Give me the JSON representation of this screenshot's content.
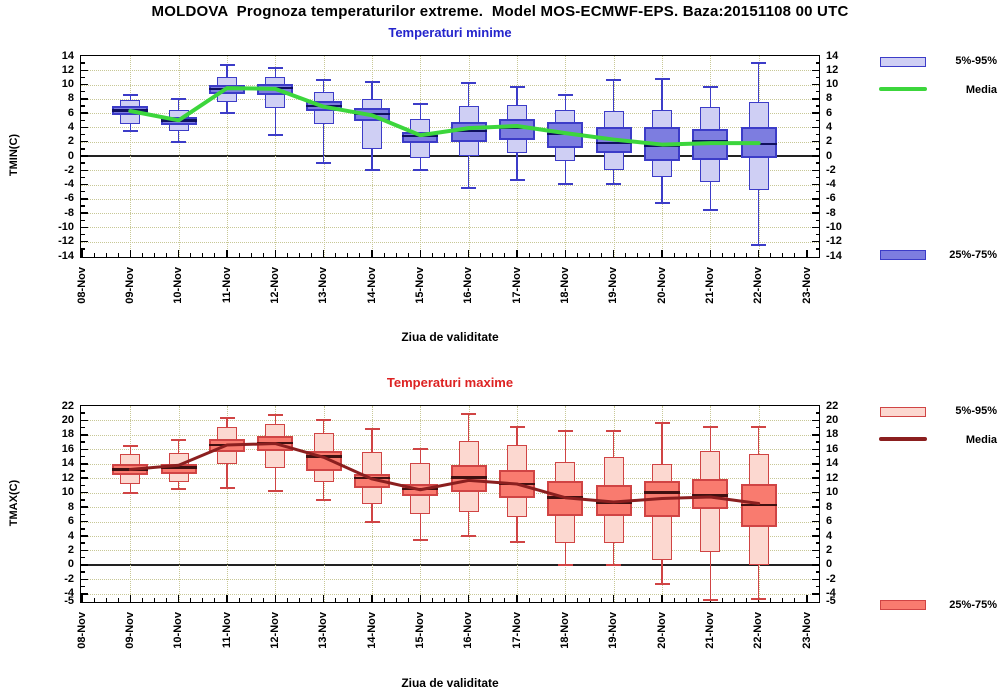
{
  "title": "MOLDOVA  Prognoza temperaturilor extreme.  Model MOS-ECMWF-EPS. Baza:20151108 00 UTC",
  "xlabel": "Ziua de validitate",
  "x_dates": [
    "08-Nov",
    "09-Nov",
    "10-Nov",
    "11-Nov",
    "12-Nov",
    "13-Nov",
    "14-Nov",
    "15-Nov",
    "16-Nov",
    "17-Nov",
    "18-Nov",
    "19-Nov",
    "20-Nov",
    "21-Nov",
    "22-Nov",
    "23-Nov"
  ],
  "colors": {
    "frame": "#000000",
    "grid": "#c8c896",
    "zero_line": "#222222",
    "title_text": "#000000"
  },
  "chart_data": [
    {
      "type": "boxplot",
      "title": "Temperaturi minime",
      "title_color": "#2424cc",
      "ylabel": "TMIN(C)",
      "xlabel": "Ziua de validitate",
      "ylim": [
        -14,
        14
      ],
      "yticks": [
        14,
        12,
        10,
        8,
        6,
        4,
        2,
        0,
        -2,
        -4,
        -6,
        -8,
        -10,
        -12,
        -14
      ],
      "grid": "dotted",
      "legend_position": "right",
      "legend": {
        "band_outer": "5%-95%",
        "media": "Media",
        "band_inner": "25%-75%"
      },
      "colors": {
        "border": "#3434bе",
        "whisker": "#3c3cc8",
        "box_5_95": "#cfcff4",
        "box_25_75": "#7d7de0",
        "median": "#101060",
        "media": "#3cd63c"
      },
      "boxes": [
        {
          "x": "09-Nov",
          "low": 3.5,
          "p5": 4.5,
          "p25": 5.8,
          "med": 6.4,
          "p75": 7.0,
          "p95": 7.8,
          "high": 8.5,
          "media": 6.3
        },
        {
          "x": "10-Nov",
          "low": 2.0,
          "p5": 3.5,
          "p25": 4.3,
          "med": 5.0,
          "p75": 5.5,
          "p95": 6.5,
          "high": 8.0,
          "media": 5.0
        },
        {
          "x": "11-Nov",
          "low": 6.0,
          "p5": 7.5,
          "p25": 8.7,
          "med": 9.4,
          "p75": 10.0,
          "p95": 11.0,
          "high": 12.8,
          "media": 9.5
        },
        {
          "x": "12-Nov",
          "low": 3.0,
          "p5": 6.7,
          "p25": 8.6,
          "med": 9.5,
          "p75": 10.1,
          "p95": 11.0,
          "high": 12.3,
          "media": 9.4
        },
        {
          "x": "13-Nov",
          "low": -1.0,
          "p5": 4.5,
          "p25": 6.3,
          "med": 7.0,
          "p75": 7.7,
          "p95": 9.0,
          "high": 10.6,
          "media": 6.9
        },
        {
          "x": "14-Nov",
          "low": -2.0,
          "p5": 1.0,
          "p25": 4.9,
          "med": 5.9,
          "p75": 6.7,
          "p95": 8.0,
          "high": 10.4,
          "media": 5.7
        },
        {
          "x": "15-Nov",
          "low": -2.0,
          "p5": -0.3,
          "p25": 1.8,
          "med": 2.8,
          "p75": 3.4,
          "p95": 5.2,
          "high": 7.3,
          "media": 2.9
        },
        {
          "x": "16-Nov",
          "low": -4.5,
          "p5": 0.0,
          "p25": 2.0,
          "med": 3.5,
          "p75": 4.8,
          "p95": 7.0,
          "high": 10.2,
          "media": 3.9
        },
        {
          "x": "17-Nov",
          "low": -3.4,
          "p5": 0.4,
          "p25": 2.2,
          "med": 3.9,
          "p75": 5.2,
          "p95": 7.2,
          "high": 9.7,
          "media": 4.2
        },
        {
          "x": "18-Nov",
          "low": -3.9,
          "p5": -0.7,
          "p25": 1.1,
          "med": 3.1,
          "p75": 4.7,
          "p95": 6.5,
          "high": 8.6,
          "media": 3.2
        },
        {
          "x": "19-Nov",
          "low": -3.9,
          "p5": -1.9,
          "p25": 0.4,
          "med": 1.8,
          "p75": 4.0,
          "p95": 6.3,
          "high": 10.6,
          "media": 2.3
        },
        {
          "x": "20-Nov",
          "low": -6.6,
          "p5": -2.9,
          "p25": -0.7,
          "med": 1.5,
          "p75": 4.0,
          "p95": 6.5,
          "high": 10.8,
          "media": 1.6
        },
        {
          "x": "21-Nov",
          "low": -7.5,
          "p5": -3.6,
          "p25": -0.6,
          "med": 2.0,
          "p75": 3.8,
          "p95": 6.9,
          "high": 9.6,
          "media": 1.8
        },
        {
          "x": "22-Nov",
          "low": -12.4,
          "p5": -4.7,
          "p25": -0.3,
          "med": 1.7,
          "p75": 4.0,
          "p95": 7.5,
          "high": 13.0,
          "media": 1.8
        }
      ]
    },
    {
      "type": "boxplot",
      "title": "Temperaturi maxime",
      "title_color": "#dd2222",
      "ylabel": "TMAX(C)",
      "xlabel": "Ziua de validitate",
      "ylim": [
        -5,
        22
      ],
      "yticks": [
        22,
        20,
        18,
        16,
        14,
        12,
        10,
        8,
        6,
        4,
        2,
        0,
        -2,
        -4,
        -5
      ],
      "grid": "dotted",
      "legend_position": "right",
      "legend": {
        "band_outer": "5%-95%",
        "media": "Media",
        "band_inner": "25%-75%"
      },
      "colors": {
        "border": "#d23c3c",
        "whisker": "#d04444",
        "box_5_95": "#fcd8d0",
        "box_25_75": "#f97b6f",
        "median": "#401010",
        "media": "#8b1f1f"
      },
      "boxes": [
        {
          "x": "09-Nov",
          "low": 10.0,
          "p5": 11.2,
          "p25": 12.4,
          "med": 13.2,
          "p75": 14.0,
          "p95": 15.3,
          "high": 16.4,
          "media": 13.2
        },
        {
          "x": "10-Nov",
          "low": 10.5,
          "p5": 11.5,
          "p25": 12.6,
          "med": 13.5,
          "p75": 14.0,
          "p95": 15.5,
          "high": 17.3,
          "media": 13.8
        },
        {
          "x": "11-Nov",
          "low": 10.7,
          "p5": 14.0,
          "p25": 15.6,
          "med": 16.6,
          "p75": 17.5,
          "p95": 19.1,
          "high": 20.4,
          "media": 16.6
        },
        {
          "x": "12-Nov",
          "low": 10.2,
          "p5": 13.4,
          "p25": 15.8,
          "med": 16.9,
          "p75": 17.8,
          "p95": 19.5,
          "high": 20.8,
          "media": 16.8
        },
        {
          "x": "13-Nov",
          "low": 9.0,
          "p5": 11.5,
          "p25": 13.0,
          "med": 15.0,
          "p75": 15.8,
          "p95": 18.2,
          "high": 20.1,
          "media": 14.9
        },
        {
          "x": "14-Nov",
          "low": 6.0,
          "p5": 8.4,
          "p25": 10.6,
          "med": 12.0,
          "p75": 12.6,
          "p95": 15.7,
          "high": 18.8,
          "media": 11.9
        },
        {
          "x": "15-Nov",
          "low": 3.5,
          "p5": 7.1,
          "p25": 9.5,
          "med": 10.5,
          "p75": 11.2,
          "p95": 14.1,
          "high": 16.1,
          "media": 10.4
        },
        {
          "x": "16-Nov",
          "low": 4.0,
          "p5": 7.3,
          "p25": 10.1,
          "med": 12.1,
          "p75": 13.9,
          "p95": 17.1,
          "high": 20.9,
          "media": 11.7
        },
        {
          "x": "17-Nov",
          "low": 3.2,
          "p5": 6.7,
          "p25": 9.2,
          "med": 11.2,
          "p75": 13.2,
          "p95": 16.6,
          "high": 19.1,
          "media": 11.2
        },
        {
          "x": "18-Nov",
          "low": 0.0,
          "p5": 3.0,
          "p25": 6.7,
          "med": 9.3,
          "p75": 11.6,
          "p95": 14.2,
          "high": 18.6,
          "media": 9.3
        },
        {
          "x": "19-Nov",
          "low": 0.0,
          "p5": 3.0,
          "p25": 6.7,
          "med": 8.6,
          "p75": 11.1,
          "p95": 15.0,
          "high": 18.5,
          "media": 8.7
        },
        {
          "x": "20-Nov",
          "low": -2.6,
          "p5": 0.7,
          "p25": 6.6,
          "med": 10.0,
          "p75": 11.6,
          "p95": 14.0,
          "high": 19.7,
          "media": 9.2
        },
        {
          "x": "21-Nov",
          "low": -4.8,
          "p5": 1.8,
          "p25": 7.8,
          "med": 9.6,
          "p75": 11.9,
          "p95": 15.8,
          "high": 19.1,
          "media": 9.4
        },
        {
          "x": "22-Nov",
          "low": -4.7,
          "p5": 0.0,
          "p25": 5.2,
          "med": 8.3,
          "p75": 11.2,
          "p95": 15.4,
          "high": 19.1,
          "media": 8.5
        }
      ]
    }
  ]
}
